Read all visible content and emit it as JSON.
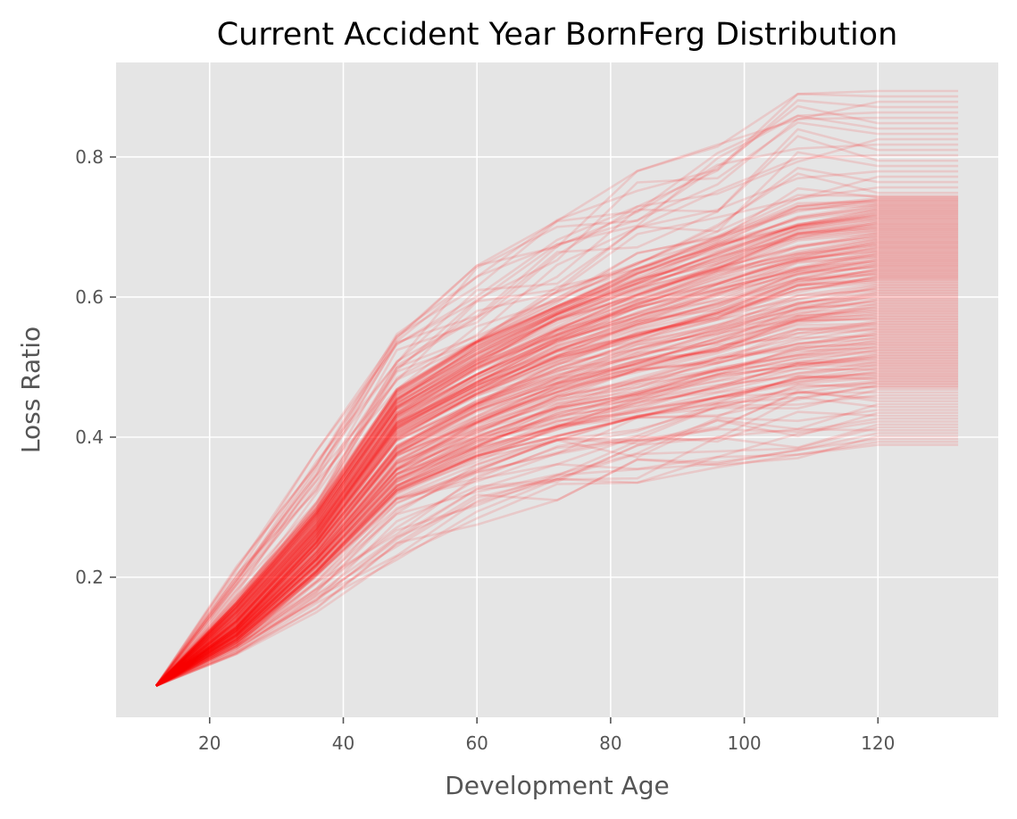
{
  "chart_data": {
    "type": "line",
    "title": "Current Accident Year BornFerg Distribution",
    "xlabel": "Development Age",
    "ylabel": "Loss Ratio",
    "x": [
      12,
      24,
      36,
      48,
      60,
      72,
      84,
      96,
      108,
      120,
      132
    ],
    "xlim": [
      6,
      138
    ],
    "ylim": [
      0.0,
      0.935
    ],
    "xticks": [
      "20",
      "40",
      "60",
      "80",
      "100",
      "120"
    ],
    "yticks": [
      "0.2",
      "0.4",
      "0.6",
      "0.8"
    ],
    "xtick_values": [
      20,
      40,
      60,
      80,
      100,
      120
    ],
    "ytick_values": [
      0.2,
      0.4,
      0.6,
      0.8
    ],
    "grid": true,
    "legend": "none",
    "series_count": 200,
    "ultimate_range": [
      0.387,
      0.898
    ],
    "start_value": 0.045,
    "distribution_percentiles": {
      "p0": [
        0.045,
        0.09,
        0.15,
        0.225,
        0.275,
        0.31,
        0.335,
        0.355,
        0.37,
        0.387,
        0.387
      ],
      "p10": [
        0.045,
        0.106,
        0.203,
        0.31,
        0.36,
        0.395,
        0.42,
        0.44,
        0.465,
        0.47,
        0.47
      ],
      "p50": [
        0.045,
        0.13,
        0.25,
        0.4,
        0.46,
        0.51,
        0.545,
        0.575,
        0.61,
        0.625,
        0.625
      ],
      "p90": [
        0.045,
        0.165,
        0.3,
        0.47,
        0.54,
        0.6,
        0.65,
        0.69,
        0.73,
        0.745,
        0.745
      ],
      "p100": [
        0.045,
        0.215,
        0.38,
        0.56,
        0.645,
        0.71,
        0.78,
        0.82,
        0.89,
        0.898,
        0.898
      ]
    },
    "line_color": "#ff0000",
    "line_alpha": 0.12,
    "background_color": "#e5e5e5",
    "grid_color": "#ffffff"
  }
}
